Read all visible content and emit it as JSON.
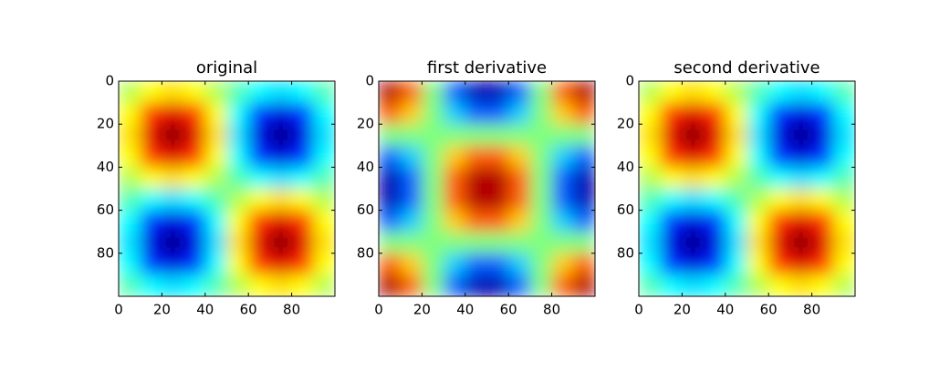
{
  "chart_data": [
    {
      "type": "heatmap",
      "title": "original",
      "colormap": "jet",
      "zlim": [
        -1,
        1
      ],
      "xlim": [
        0,
        100
      ],
      "ylim": [
        100,
        0
      ],
      "xticks": [
        0,
        20,
        40,
        60,
        80
      ],
      "yticks": [
        0,
        20,
        40,
        60,
        80
      ],
      "z": [
        [
          0.1,
          0.25,
          0.31,
          0.25,
          0.1,
          -0.1,
          -0.25,
          -0.31,
          -0.25,
          -0.1
        ],
        [
          0.25,
          0.65,
          0.81,
          0.65,
          0.25,
          -0.25,
          -0.65,
          -0.81,
          -0.65,
          -0.25
        ],
        [
          0.31,
          0.81,
          1,
          0.81,
          0.31,
          -0.31,
          -0.81,
          -1,
          -0.81,
          -0.31
        ],
        [
          0.25,
          0.65,
          0.81,
          0.65,
          0.25,
          -0.25,
          -0.65,
          -0.81,
          -0.65,
          -0.25
        ],
        [
          0.1,
          0.25,
          0.31,
          0.25,
          0.1,
          -0.1,
          -0.25,
          -0.31,
          -0.25,
          -0.1
        ],
        [
          -0.1,
          -0.25,
          -0.31,
          -0.25,
          -0.1,
          0.1,
          0.25,
          0.31,
          0.25,
          0.1
        ],
        [
          -0.25,
          -0.65,
          -0.81,
          -0.65,
          -0.25,
          0.25,
          0.65,
          0.81,
          0.65,
          0.25
        ],
        [
          -0.31,
          -0.81,
          -1,
          -0.81,
          -0.31,
          0.31,
          0.81,
          1,
          0.81,
          0.31
        ],
        [
          -0.25,
          -0.65,
          -0.81,
          -0.65,
          -0.25,
          0.25,
          0.65,
          0.81,
          0.65,
          0.25
        ],
        [
          -0.1,
          -0.25,
          -0.31,
          -0.25,
          -0.1,
          0.1,
          0.25,
          0.31,
          0.25,
          0.1
        ]
      ]
    },
    {
      "type": "heatmap",
      "title": "first derivative",
      "colormap": "jet",
      "zlim": [
        -1,
        1
      ],
      "xlim": [
        0,
        100
      ],
      "ylim": [
        100,
        0
      ],
      "xticks": [
        0,
        20,
        40,
        60,
        80
      ],
      "yticks": [
        0,
        20,
        40,
        60,
        80
      ],
      "z": [
        [
          0.9,
          0.56,
          0,
          -0.56,
          -0.9,
          -0.9,
          -0.56,
          0,
          0.56,
          0.9
        ],
        [
          0.56,
          0.35,
          0,
          -0.35,
          -0.56,
          -0.56,
          -0.35,
          0,
          0.35,
          0.56
        ],
        [
          0,
          0,
          0,
          0,
          0,
          0,
          0,
          0,
          0,
          0
        ],
        [
          -0.56,
          -0.35,
          0,
          0.35,
          0.56,
          0.56,
          0.35,
          0,
          -0.35,
          -0.56
        ],
        [
          -0.9,
          -0.56,
          0,
          0.56,
          0.9,
          0.9,
          0.56,
          0,
          -0.56,
          -0.9
        ],
        [
          -0.9,
          -0.56,
          0,
          0.56,
          0.9,
          0.9,
          0.56,
          0,
          -0.56,
          -0.9
        ],
        [
          -0.56,
          -0.35,
          0,
          0.35,
          0.56,
          0.56,
          0.35,
          0,
          -0.35,
          -0.56
        ],
        [
          0,
          0,
          0,
          0,
          0,
          0,
          0,
          0,
          0,
          0
        ],
        [
          0.56,
          0.35,
          0,
          -0.35,
          -0.56,
          -0.56,
          -0.35,
          0,
          0.35,
          0.56
        ],
        [
          0.9,
          0.56,
          0,
          -0.56,
          -0.9,
          -0.9,
          -0.56,
          0,
          0.56,
          0.9
        ]
      ]
    },
    {
      "type": "heatmap",
      "title": "second derivative",
      "colormap": "jet",
      "zlim": [
        -1,
        1
      ],
      "xlim": [
        0,
        100
      ],
      "ylim": [
        100,
        0
      ],
      "xticks": [
        0,
        20,
        40,
        60,
        80
      ],
      "yticks": [
        0,
        20,
        40,
        60,
        80
      ],
      "z": [
        [
          0.1,
          0.25,
          0.31,
          0.25,
          0.1,
          -0.1,
          -0.25,
          -0.31,
          -0.25,
          -0.1
        ],
        [
          0.25,
          0.65,
          0.81,
          0.65,
          0.25,
          -0.25,
          -0.65,
          -0.81,
          -0.65,
          -0.25
        ],
        [
          0.31,
          0.81,
          1,
          0.81,
          0.31,
          -0.31,
          -0.81,
          -1,
          -0.81,
          -0.31
        ],
        [
          0.25,
          0.65,
          0.81,
          0.65,
          0.25,
          -0.25,
          -0.65,
          -0.81,
          -0.65,
          -0.25
        ],
        [
          0.1,
          0.25,
          0.31,
          0.25,
          0.1,
          -0.1,
          -0.25,
          -0.31,
          -0.25,
          -0.1
        ],
        [
          -0.1,
          -0.25,
          -0.31,
          -0.25,
          -0.1,
          0.1,
          0.25,
          0.31,
          0.25,
          0.1
        ],
        [
          -0.25,
          -0.65,
          -0.81,
          -0.65,
          -0.25,
          0.25,
          0.65,
          0.81,
          0.65,
          0.25
        ],
        [
          -0.31,
          -0.81,
          -1,
          -0.81,
          -0.31,
          0.31,
          0.81,
          1,
          0.81,
          0.31
        ],
        [
          -0.25,
          -0.65,
          -0.81,
          -0.65,
          -0.25,
          0.25,
          0.65,
          0.81,
          0.65,
          0.25
        ],
        [
          -0.1,
          -0.25,
          -0.31,
          -0.25,
          -0.1,
          0.1,
          0.25,
          0.31,
          0.25,
          0.1
        ]
      ]
    }
  ]
}
